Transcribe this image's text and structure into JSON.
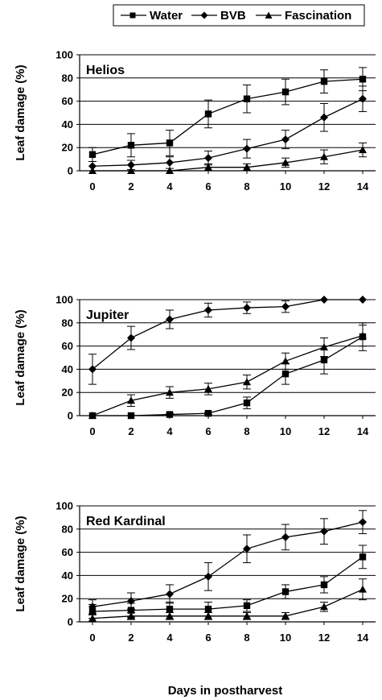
{
  "legend": {
    "items": [
      {
        "label": "Water",
        "marker": "square"
      },
      {
        "label": "BVB",
        "marker": "diamond"
      },
      {
        "label": "Fascination",
        "marker": "triangle"
      }
    ]
  },
  "x_axis_title": "Days in postharvest",
  "chart_data": [
    {
      "type": "line",
      "title": "Helios",
      "xlabel": "",
      "ylabel": "Leaf damage (%)",
      "x": [
        0,
        2,
        4,
        6,
        8,
        10,
        12,
        14
      ],
      "ylim": [
        0,
        100
      ],
      "yticks": [
        0,
        20,
        40,
        60,
        80,
        100
      ],
      "grid": "horizontal",
      "series": [
        {
          "name": "Water",
          "marker": "square",
          "values": [
            14,
            22,
            24,
            49,
            62,
            68,
            77,
            79
          ],
          "errors": [
            6,
            10,
            11,
            12,
            12,
            11,
            10,
            10
          ]
        },
        {
          "name": "BVB",
          "marker": "diamond",
          "values": [
            4,
            5,
            7,
            11,
            19,
            27,
            46,
            62
          ],
          "errors": [
            4,
            4,
            5,
            6,
            8,
            8,
            12,
            11
          ]
        },
        {
          "name": "Fascination",
          "marker": "triangle",
          "values": [
            0,
            0,
            0,
            3,
            3,
            7,
            12,
            18
          ],
          "errors": [
            0,
            0,
            0,
            3,
            3,
            4,
            6,
            6
          ]
        }
      ]
    },
    {
      "type": "line",
      "title": "Jupiter",
      "xlabel": "",
      "ylabel": "Leaf damage (%)",
      "x": [
        0,
        2,
        4,
        6,
        8,
        10,
        12,
        14
      ],
      "ylim": [
        0,
        100
      ],
      "yticks": [
        0,
        20,
        40,
        60,
        80,
        100
      ],
      "grid": "horizontal",
      "series": [
        {
          "name": "Water",
          "marker": "square",
          "values": [
            0,
            0,
            1,
            2,
            11,
            36,
            48,
            68
          ],
          "errors": [
            0,
            0,
            1,
            1,
            5,
            9,
            12,
            12
          ]
        },
        {
          "name": "BVB",
          "marker": "diamond",
          "values": [
            40,
            67,
            83,
            91,
            93,
            94,
            100,
            100
          ],
          "errors": [
            13,
            10,
            8,
            6,
            5,
            5,
            0,
            0
          ]
        },
        {
          "name": "Fascination",
          "marker": "triangle",
          "values": [
            0,
            13,
            20,
            23,
            29,
            47,
            59,
            69
          ],
          "errors": [
            0,
            5,
            5,
            5,
            6,
            7,
            8,
            9
          ]
        }
      ]
    },
    {
      "type": "line",
      "title": "Red Kardinal",
      "xlabel": "Days in postharvest",
      "ylabel": "Leaf damage (%)",
      "x": [
        0,
        2,
        4,
        6,
        8,
        10,
        12,
        14
      ],
      "ylim": [
        0,
        100
      ],
      "yticks": [
        0,
        20,
        40,
        60,
        80,
        100
      ],
      "grid": "horizontal",
      "series": [
        {
          "name": "Water",
          "marker": "square",
          "values": [
            9,
            10,
            11,
            11,
            14,
            26,
            32,
            56
          ],
          "errors": [
            6,
            6,
            6,
            6,
            5,
            6,
            7,
            10
          ]
        },
        {
          "name": "BVB",
          "marker": "diamond",
          "values": [
            13,
            18,
            24,
            39,
            63,
            73,
            78,
            86
          ],
          "errors": [
            6,
            7,
            8,
            12,
            12,
            11,
            11,
            10
          ]
        },
        {
          "name": "Fascination",
          "marker": "triangle",
          "values": [
            3,
            5,
            5,
            5,
            5,
            5,
            13,
            28
          ],
          "errors": [
            3,
            3,
            3,
            3,
            3,
            3,
            4,
            9
          ]
        }
      ]
    }
  ]
}
